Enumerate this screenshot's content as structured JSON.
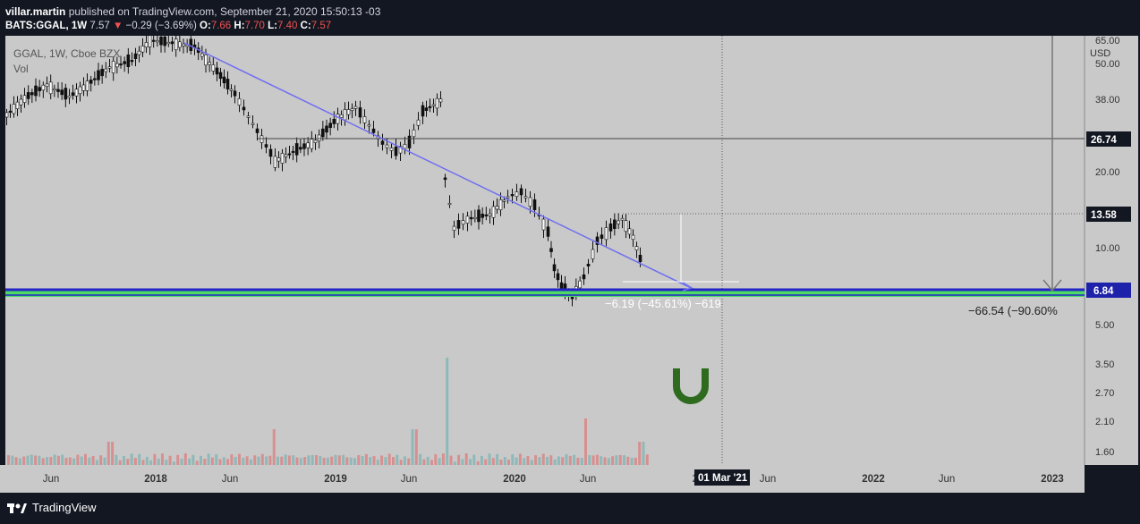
{
  "header": {
    "publisher": "villar.martin",
    "published_text": "published on TradingView.com, September 21, 2020 15:50:13 -03",
    "symbol": "BATS:GGAL, 1W",
    "last_price": "7.57",
    "change": "−0.29 (−3.69%)",
    "o_label": "O:",
    "o_value": "7.66",
    "h_label": "H:",
    "h_value": "7.70",
    "l_label": "L:",
    "l_value": "7.40",
    "c_label": "C:",
    "c_value": "7.57"
  },
  "legend": {
    "title": "GGAL, 1W, Cboe BZX",
    "volume": "Vol"
  },
  "price_axis": {
    "unit": "USD",
    "ticks": [
      "65.00",
      "50.00",
      "38.00",
      "20.00",
      "10.00",
      "5.00",
      "3.50",
      "2.70",
      "2.10",
      "1.60"
    ],
    "labels": [
      {
        "text": "26.74",
        "color": "#ffffff",
        "bg": "#131722"
      },
      {
        "text": "13.58",
        "color": "#ffffff",
        "bg": "#131722"
      },
      {
        "text": "6.84",
        "color": "#ffffff",
        "bg": "#1e22aa"
      }
    ]
  },
  "time_axis": {
    "ticks": [
      "Jun",
      "2018",
      "Jun",
      "2019",
      "Jun",
      "2020",
      "Jun",
      "20",
      "Jun",
      "2022",
      "Jun",
      "2023"
    ],
    "cursor_label": "01 Mar '21"
  },
  "annotations": {
    "measure_short": "−6.19 (−45.61%) −619",
    "measure_long": "−66.54 (−90.60%"
  },
  "colors": {
    "chart_bg": "#c9c9c9",
    "trendline": "#6f6ff0",
    "support_blue": "#2424c8",
    "support_green": "#4cd964",
    "volume_up": "#8fb8b8",
    "volume_down": "#d88f8f",
    "logo_green": "#2e6b1f"
  },
  "icons": {
    "watermark": "magnet-icon",
    "brand": "tradingview-logo"
  },
  "footer": {
    "brand": "TradingView"
  }
}
